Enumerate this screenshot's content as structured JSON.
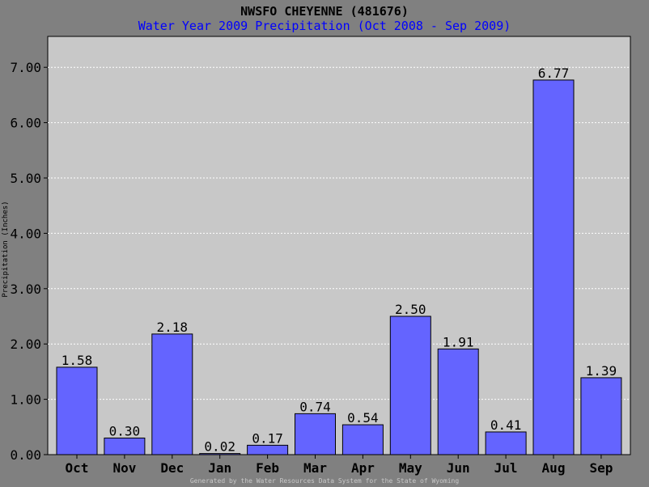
{
  "chart_data": {
    "type": "bar",
    "title": "NWSFO CHEYENNE (481676)",
    "subtitle": "Water Year 2009 Precipitation (Oct 2008 - Sep 2009)",
    "ylabel": "Precipitation (Inches)",
    "xlabel": "",
    "categories": [
      "Oct",
      "Nov",
      "Dec",
      "Jan",
      "Feb",
      "Mar",
      "Apr",
      "May",
      "Jun",
      "Jul",
      "Aug",
      "Sep"
    ],
    "values": [
      1.58,
      0.3,
      2.18,
      0.02,
      0.17,
      0.74,
      0.54,
      2.5,
      1.91,
      0.41,
      6.77,
      1.39
    ],
    "value_labels": [
      "1.58",
      "0.30",
      "2.18",
      "0.02",
      "0.17",
      "0.74",
      "0.54",
      "2.50",
      "1.91",
      "0.41",
      "6.77",
      "1.39"
    ],
    "ylim": [
      0,
      7.3
    ],
    "yticks": [
      0,
      1,
      2,
      3,
      4,
      5,
      6,
      7
    ],
    "ytick_labels": [
      "0.00",
      "1.00",
      "2.00",
      "3.00",
      "4.00",
      "5.00",
      "6.00",
      "7.00"
    ],
    "grid": true,
    "footer": "Generated by the Water Resources Data System for the State of Wyoming",
    "colors": {
      "background": "#808080",
      "plot_area": "#c8c8c8",
      "bar": "#6464ff",
      "subtitle": "#0000ff"
    }
  }
}
